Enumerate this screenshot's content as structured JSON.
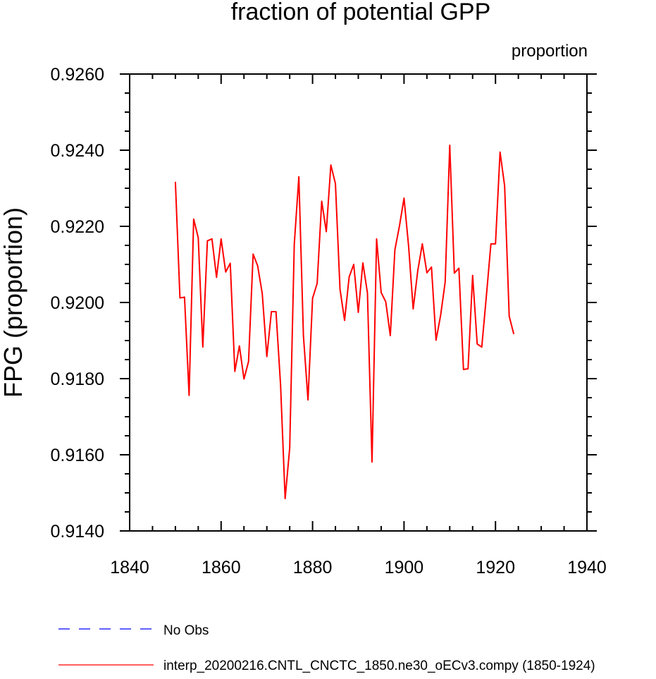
{
  "chart_data": {
    "type": "line",
    "title": "fraction of potential GPP",
    "units_label": "proportion",
    "ylabel": "FPG  (proportion)",
    "xlabel": "",
    "xlim": [
      1840,
      1940
    ],
    "ylim": [
      0.914,
      0.926
    ],
    "x_ticks": [
      "1840",
      "1860",
      "1880",
      "1900",
      "1920",
      "1940"
    ],
    "y_ticks": [
      "0.9140",
      "0.9160",
      "0.9180",
      "0.9200",
      "0.9220",
      "0.9240",
      "0.9260"
    ],
    "grid": false,
    "legend_position": "bottom",
    "series": [
      {
        "name": "No Obs",
        "color": "#0000ff",
        "dash": "dashed",
        "x": [],
        "y": []
      },
      {
        "name": "interp_20200216.CNTL_CNCTC_1850.ne30_oECv3.compy (1850-1924)",
        "color": "#ff0000",
        "dash": "solid",
        "x": [
          1850,
          1851,
          1852,
          1853,
          1854,
          1855,
          1856,
          1857,
          1858,
          1859,
          1860,
          1861,
          1862,
          1863,
          1864,
          1865,
          1866,
          1867,
          1868,
          1869,
          1870,
          1871,
          1872,
          1873,
          1874,
          1875,
          1876,
          1877,
          1878,
          1879,
          1880,
          1881,
          1882,
          1883,
          1884,
          1885,
          1886,
          1887,
          1888,
          1889,
          1890,
          1891,
          1892,
          1893,
          1894,
          1895,
          1896,
          1897,
          1898,
          1899,
          1900,
          1901,
          1902,
          1903,
          1904,
          1905,
          1906,
          1907,
          1908,
          1909,
          1910,
          1911,
          1912,
          1913,
          1914,
          1915,
          1916,
          1917,
          1918,
          1919,
          1920,
          1921,
          1922,
          1923,
          1924
        ],
        "y": [
          0.92317,
          0.92012,
          0.92014,
          0.91756,
          0.92219,
          0.9217,
          0.91883,
          0.92162,
          0.92167,
          0.92066,
          0.92167,
          0.9208,
          0.92103,
          0.91819,
          0.91886,
          0.91799,
          0.91845,
          0.92127,
          0.92096,
          0.92023,
          0.91858,
          0.91976,
          0.91976,
          0.91784,
          0.91485,
          0.91618,
          0.92153,
          0.9233,
          0.91913,
          0.91744,
          0.92011,
          0.9205,
          0.92266,
          0.92186,
          0.92361,
          0.92312,
          0.92035,
          0.91953,
          0.92067,
          0.921,
          0.91974,
          0.92104,
          0.92025,
          0.91581,
          0.92167,
          0.92026,
          0.92002,
          0.91913,
          0.92138,
          0.92201,
          0.92274,
          0.92148,
          0.91983,
          0.92083,
          0.92154,
          0.92078,
          0.92093,
          0.91901,
          0.91966,
          0.92054,
          0.92413,
          0.92077,
          0.9209,
          0.91824,
          0.91826,
          0.92071,
          0.91891,
          0.91883,
          0.92016,
          0.92154,
          0.92154,
          0.92395,
          0.92306,
          0.91964,
          0.91917
        ]
      }
    ]
  }
}
